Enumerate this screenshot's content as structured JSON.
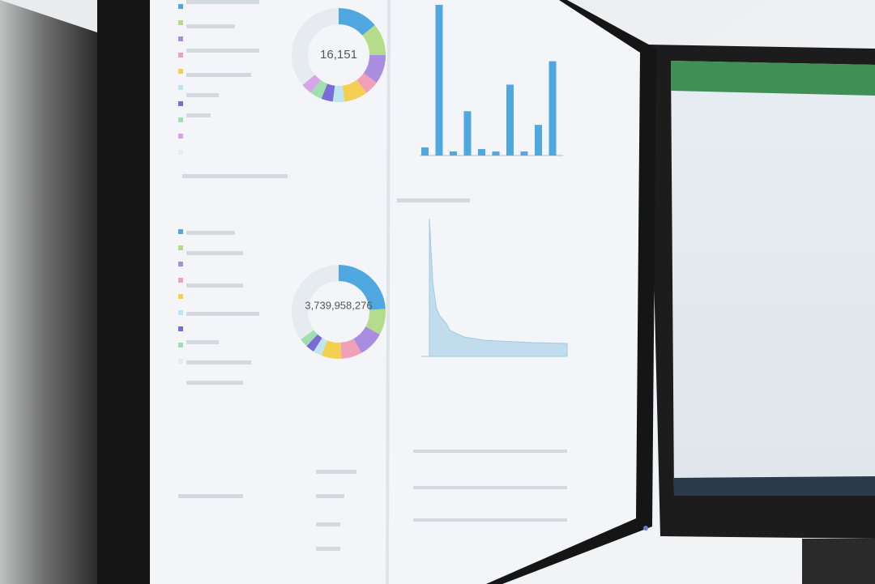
{
  "screen": {
    "donut_top": {
      "center_label": "16,151",
      "segments": [
        {
          "color": "#4fa8e0",
          "value": 14
        },
        {
          "color": "#b5dc8a",
          "value": 11
        },
        {
          "color": "#a98de0",
          "value": 10
        },
        {
          "color": "#f0a0b8",
          "value": 5
        },
        {
          "color": "#f5cf52",
          "value": 8
        },
        {
          "color": "#bfe6f0",
          "value": 4
        },
        {
          "color": "#7b6bd6",
          "value": 4
        },
        {
          "color": "#9fe0b0",
          "value": 4
        },
        {
          "color": "#d7a5e8",
          "value": 4
        },
        {
          "color": "#e6ebf0",
          "value": 36
        }
      ]
    },
    "donut_bottom": {
      "center_label": "3,739,958,276",
      "segments": [
        {
          "color": "#4fa8e0",
          "value": 24
        },
        {
          "color": "#b5dc8a",
          "value": 9
        },
        {
          "color": "#a98de0",
          "value": 9
        },
        {
          "color": "#f0a0b8",
          "value": 7
        },
        {
          "color": "#f5cf52",
          "value": 7
        },
        {
          "color": "#bfe6f0",
          "value": 3
        },
        {
          "color": "#7b6bd6",
          "value": 3
        },
        {
          "color": "#9fe0b0",
          "value": 3
        },
        {
          "color": "#e6ebf0",
          "value": 35
        }
      ]
    },
    "bar_chart": {
      "color": "#4fa8e0",
      "ylim": [
        0,
        190
      ],
      "values": [
        10,
        187,
        5,
        55,
        8,
        5,
        88,
        5,
        38,
        117
      ]
    },
    "area_chart": {
      "color": "#9fcbe6",
      "ylim": [
        0,
        170
      ],
      "x": [
        0,
        1,
        2,
        3,
        4,
        5,
        6,
        8,
        10,
        13,
        16,
        20,
        25,
        30,
        40
      ],
      "values": [
        170,
        90,
        60,
        50,
        45,
        40,
        32,
        28,
        24,
        22,
        20,
        19,
        18,
        17,
        16
      ]
    }
  }
}
